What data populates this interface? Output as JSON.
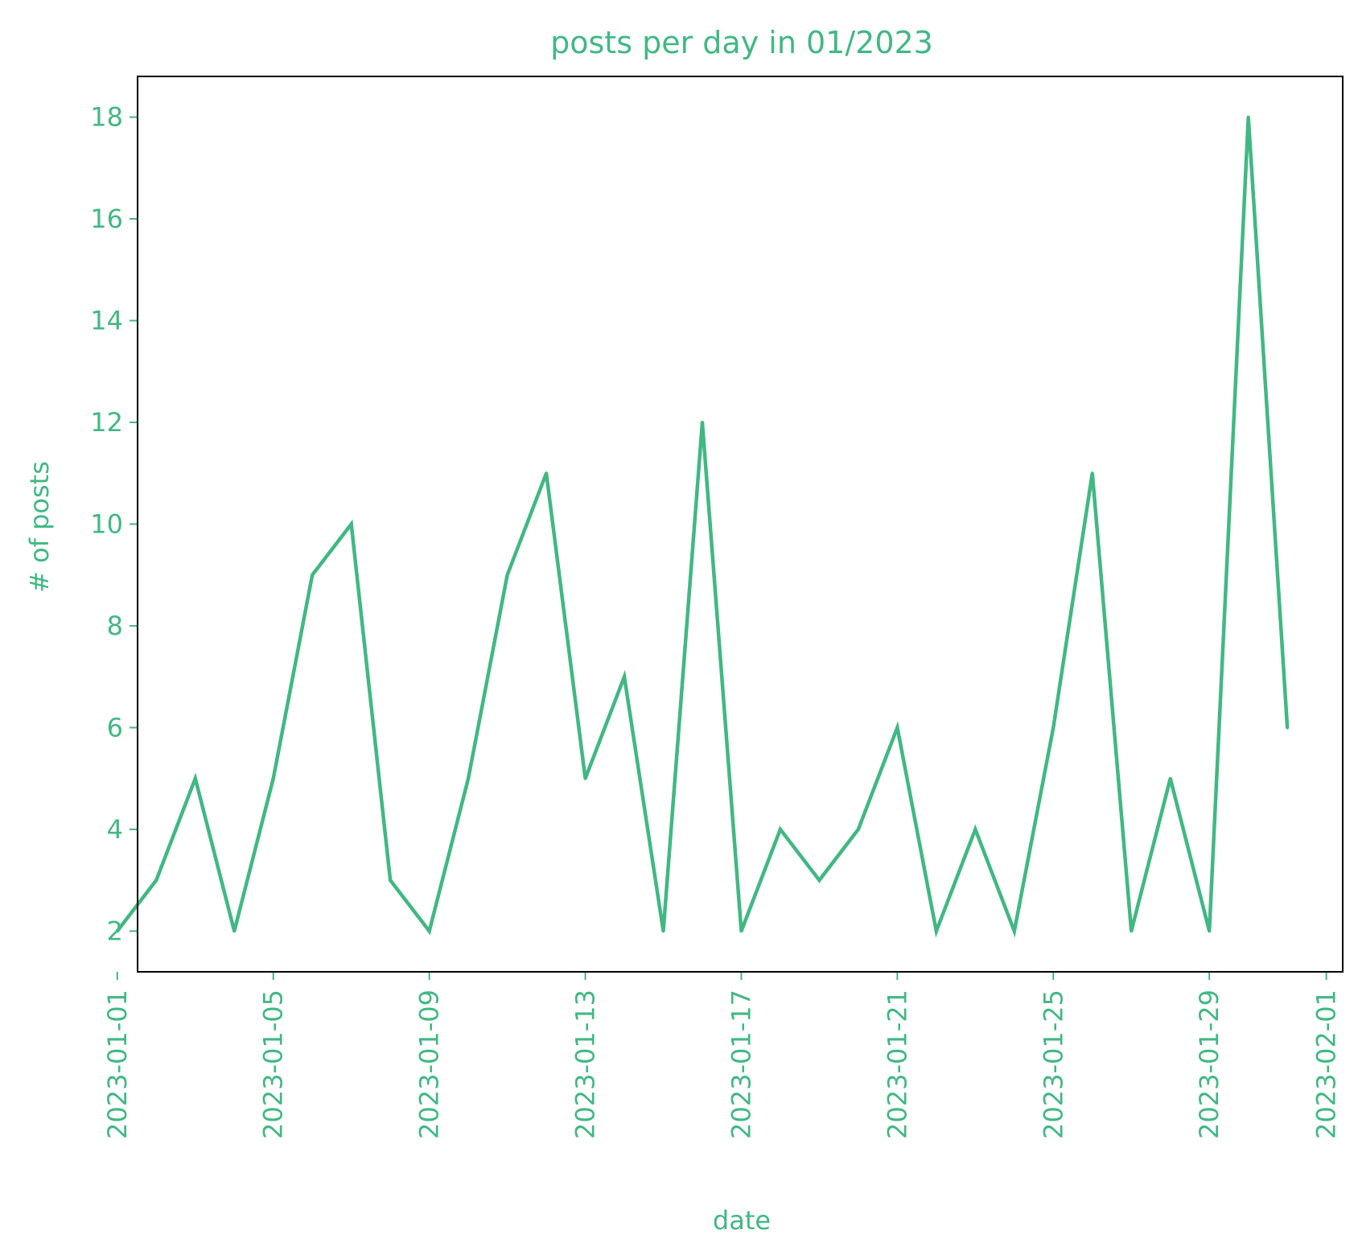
{
  "chart_data": {
    "type": "line",
    "title": "posts per day in 01/2023",
    "xlabel": "date",
    "ylabel": "# of posts",
    "color": "#41b883",
    "xlim": [
      "2022-12-30",
      "2023-02-01"
    ],
    "ylim": [
      1.2,
      18.8
    ],
    "grid": false,
    "yticks": [
      2,
      4,
      6,
      8,
      10,
      12,
      14,
      16,
      18
    ],
    "xticks": [
      "2023-01-01",
      "2023-01-05",
      "2023-01-09",
      "2023-01-13",
      "2023-01-17",
      "2023-01-21",
      "2023-01-25",
      "2023-01-29",
      "2023-02-01"
    ],
    "series": [
      {
        "x": [
          "2023-01-01",
          "2023-01-02",
          "2023-01-03",
          "2023-01-04",
          "2023-01-05",
          "2023-01-06",
          "2023-01-07",
          "2023-01-08",
          "2023-01-09",
          "2023-01-10",
          "2023-01-11",
          "2023-01-12",
          "2023-01-13",
          "2023-01-14",
          "2023-01-15",
          "2023-01-16",
          "2023-01-17",
          "2023-01-18",
          "2023-01-19",
          "2023-01-20",
          "2023-01-21",
          "2023-01-22",
          "2023-01-23",
          "2023-01-24",
          "2023-01-25",
          "2023-01-26",
          "2023-01-27",
          "2023-01-28",
          "2023-01-29",
          "2023-01-30",
          "2023-01-31"
        ],
        "y": [
          2,
          3,
          5,
          2,
          5,
          9,
          10,
          3,
          2,
          5,
          9,
          11,
          5,
          7,
          2,
          12,
          2,
          4,
          3,
          4,
          6,
          2,
          4,
          2,
          6,
          11,
          2,
          5,
          2,
          18,
          6
        ]
      }
    ]
  }
}
